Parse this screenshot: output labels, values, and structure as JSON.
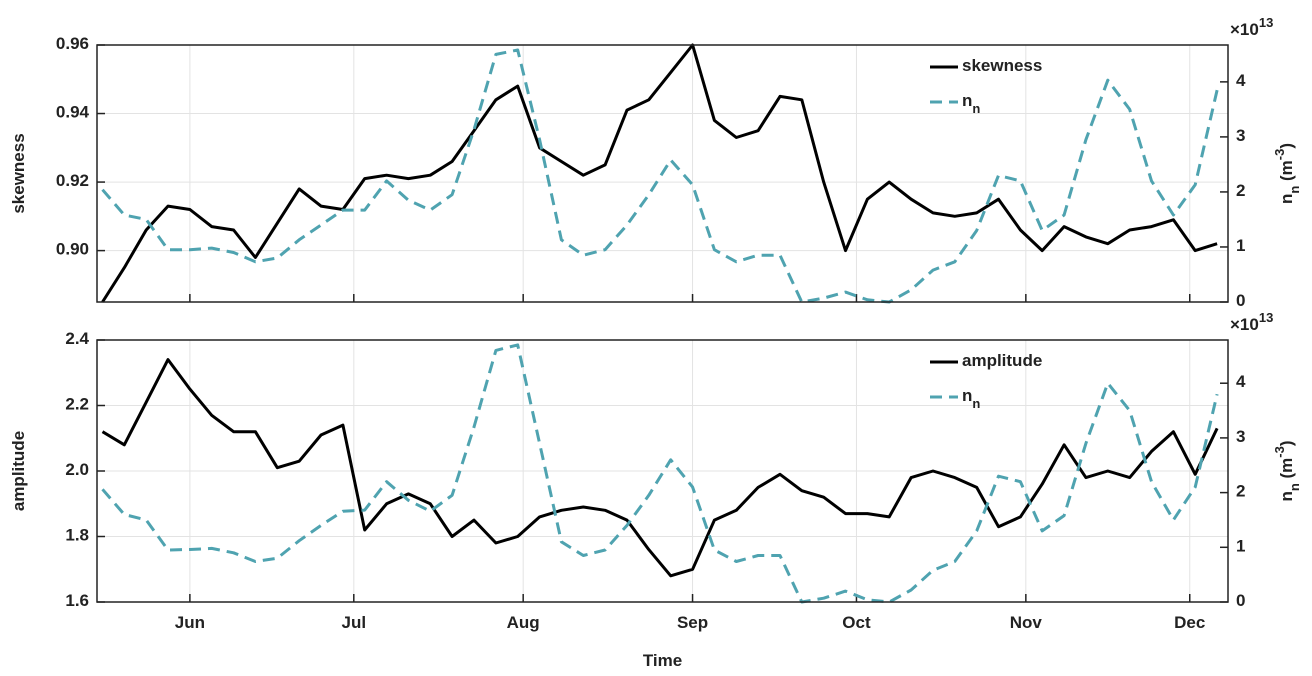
{
  "chart_data": [
    {
      "type": "line",
      "ylabel": "skewness",
      "y2label": "n_n (m^-3)",
      "y2multiplier": "×10^13",
      "x": [
        136,
        140,
        144,
        148,
        152,
        156,
        160,
        164,
        168,
        172,
        176,
        180,
        184,
        188,
        192,
        196,
        200,
        204,
        208,
        212,
        216,
        220,
        224,
        228,
        232,
        236,
        240,
        244,
        248,
        252,
        256,
        260,
        264,
        268,
        272,
        276,
        280,
        284,
        288,
        292,
        296,
        300,
        304,
        308,
        312,
        316,
        320,
        324,
        328,
        332,
        336,
        340
      ],
      "xlim": [
        135,
        342
      ],
      "xticks": [
        152,
        182,
        213,
        244,
        274,
        305,
        335
      ],
      "ylim": [
        0.885,
        0.96
      ],
      "yticks": [
        {
          "value": 0.9,
          "label": "0.90"
        },
        0.92,
        0.94,
        0.96
      ],
      "y2lim": [
        0,
        4.67
      ],
      "y2ticks": [
        0,
        1,
        2,
        3,
        4
      ],
      "grid": true,
      "legend": "upper right",
      "series": [
        {
          "name": "skewness",
          "color": "#000000",
          "style": "solid",
          "values": [
            0.885,
            0.895,
            0.906,
            0.913,
            0.912,
            0.907,
            0.906,
            0.898,
            0.908,
            0.918,
            0.913,
            0.912,
            0.921,
            0.922,
            0.921,
            0.922,
            0.926,
            0.935,
            0.944,
            0.948,
            0.93,
            0.926,
            0.922,
            0.925,
            0.941,
            0.944,
            0.952,
            0.96,
            0.938,
            0.933,
            0.935,
            0.945,
            0.944,
            0.92,
            0.9,
            0.915,
            0.92,
            0.915,
            0.911,
            0.91,
            0.911,
            0.915,
            0.906,
            0.9,
            0.907,
            0.904,
            0.902,
            0.906,
            0.907,
            0.909,
            0.9,
            0.902
          ]
        },
        {
          "name": "n_n",
          "color": "#4fa3b0",
          "style": "dashed",
          "axis": "y2",
          "values": [
            2.04,
            1.58,
            1.5,
            0.95,
            0.95,
            0.98,
            0.9,
            0.73,
            0.8,
            1.13,
            1.4,
            1.67,
            1.67,
            2.2,
            1.85,
            1.67,
            1.95,
            3.13,
            4.5,
            4.58,
            2.95,
            1.13,
            0.85,
            0.95,
            1.4,
            1.95,
            2.58,
            2.13,
            0.95,
            0.73,
            0.85,
            0.85,
            0,
            0.07,
            0.18,
            0.04,
            0,
            0.22,
            0.58,
            0.73,
            1.3,
            2.3,
            2.2,
            1.3,
            1.58,
            2.95,
            4.03,
            3.5,
            2.2,
            1.58,
            2.13,
            3.85
          ]
        }
      ]
    },
    {
      "type": "line",
      "ylabel": "amplitude",
      "y2label": "n_n (m^-3)",
      "y2multiplier": "×10^13",
      "xlabel": "Time",
      "x": [
        136,
        140,
        144,
        148,
        152,
        156,
        160,
        164,
        168,
        172,
        176,
        180,
        184,
        188,
        192,
        196,
        200,
        204,
        208,
        212,
        216,
        220,
        224,
        228,
        232,
        236,
        240,
        244,
        248,
        252,
        256,
        260,
        264,
        268,
        272,
        276,
        280,
        284,
        288,
        292,
        296,
        300,
        304,
        308,
        312,
        316,
        320,
        324,
        328,
        332,
        336,
        340
      ],
      "xlim": [
        135,
        342
      ],
      "xticks": [
        {
          "value": 152,
          "label": "Jun"
        },
        {
          "value": 182,
          "label": "Jul"
        },
        {
          "value": 213,
          "label": "Aug"
        },
        {
          "value": 244,
          "label": "Sep"
        },
        {
          "value": 274,
          "label": "Oct"
        },
        {
          "value": 305,
          "label": "Nov"
        },
        {
          "value": 335,
          "label": "Dec"
        }
      ],
      "ylim": [
        1.6,
        2.4
      ],
      "yticks": [
        1.6,
        1.8,
        {
          "value": 2,
          "label": "2.0"
        },
        2.2,
        2.4
      ],
      "y2lim": [
        0,
        4.79
      ],
      "y2ticks": [
        0,
        1,
        2,
        3,
        4
      ],
      "grid": true,
      "legend": "upper right",
      "series": [
        {
          "name": "amplitude",
          "color": "#000000",
          "style": "solid",
          "values": [
            2.12,
            2.08,
            2.21,
            2.34,
            2.25,
            2.17,
            2.12,
            2.12,
            2.01,
            2.03,
            2.11,
            2.14,
            1.82,
            1.9,
            1.93,
            1.9,
            1.8,
            1.85,
            1.78,
            1.8,
            1.86,
            1.88,
            1.89,
            1.88,
            1.85,
            1.76,
            1.68,
            1.7,
            1.85,
            1.88,
            1.95,
            1.99,
            1.94,
            1.92,
            1.87,
            1.87,
            1.86,
            1.98,
            2.0,
            1.98,
            1.95,
            1.83,
            1.86,
            1.96,
            2.08,
            1.98,
            2.0,
            1.98,
            2.06,
            2.12,
            1.99,
            2.13
          ]
        },
        {
          "name": "n_n",
          "color": "#4fa3b0",
          "style": "dashed",
          "axis": "y2",
          "values": [
            2.06,
            1.6,
            1.5,
            0.95,
            0.96,
            0.98,
            0.9,
            0.74,
            0.8,
            1.12,
            1.4,
            1.66,
            1.68,
            2.2,
            1.86,
            1.66,
            1.95,
            3.2,
            4.6,
            4.7,
            2.9,
            1.1,
            0.85,
            0.95,
            1.4,
            1.95,
            2.6,
            2.1,
            0.95,
            0.74,
            0.85,
            0.85,
            0,
            0.07,
            0.2,
            0.04,
            0,
            0.22,
            0.58,
            0.74,
            1.3,
            2.3,
            2.2,
            1.3,
            1.58,
            2.9,
            4.0,
            3.5,
            2.2,
            1.5,
            2.1,
            3.8
          ]
        }
      ]
    }
  ]
}
